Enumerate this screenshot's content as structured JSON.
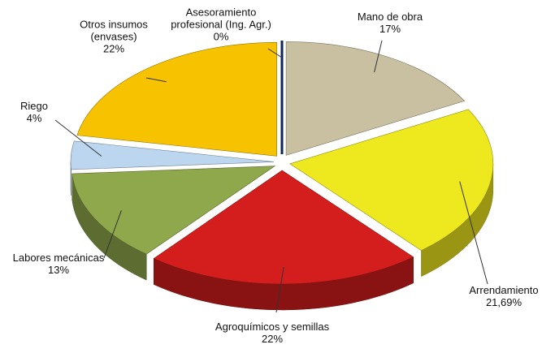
{
  "chart_data": {
    "type": "pie",
    "categories": [
      "Mano de obra",
      "Arrendamiento",
      "Agroquímicos y semillas",
      "Labores mecánicas",
      "Riego",
      "Otros insumos (envases)",
      "Asesoramiento profesional (Ing. Agr.)"
    ],
    "values": [
      17,
      21.69,
      22,
      13,
      4,
      22,
      0
    ],
    "value_labels": [
      "17%",
      "21,69%",
      "22%",
      "13%",
      "4%",
      "22%",
      "0%"
    ],
    "colors": [
      "#c9c0a2",
      "#eee81e",
      "#d41e1e",
      "#90a84c",
      "#bcd6f0",
      "#f7c300",
      "#1c3f98"
    ]
  }
}
